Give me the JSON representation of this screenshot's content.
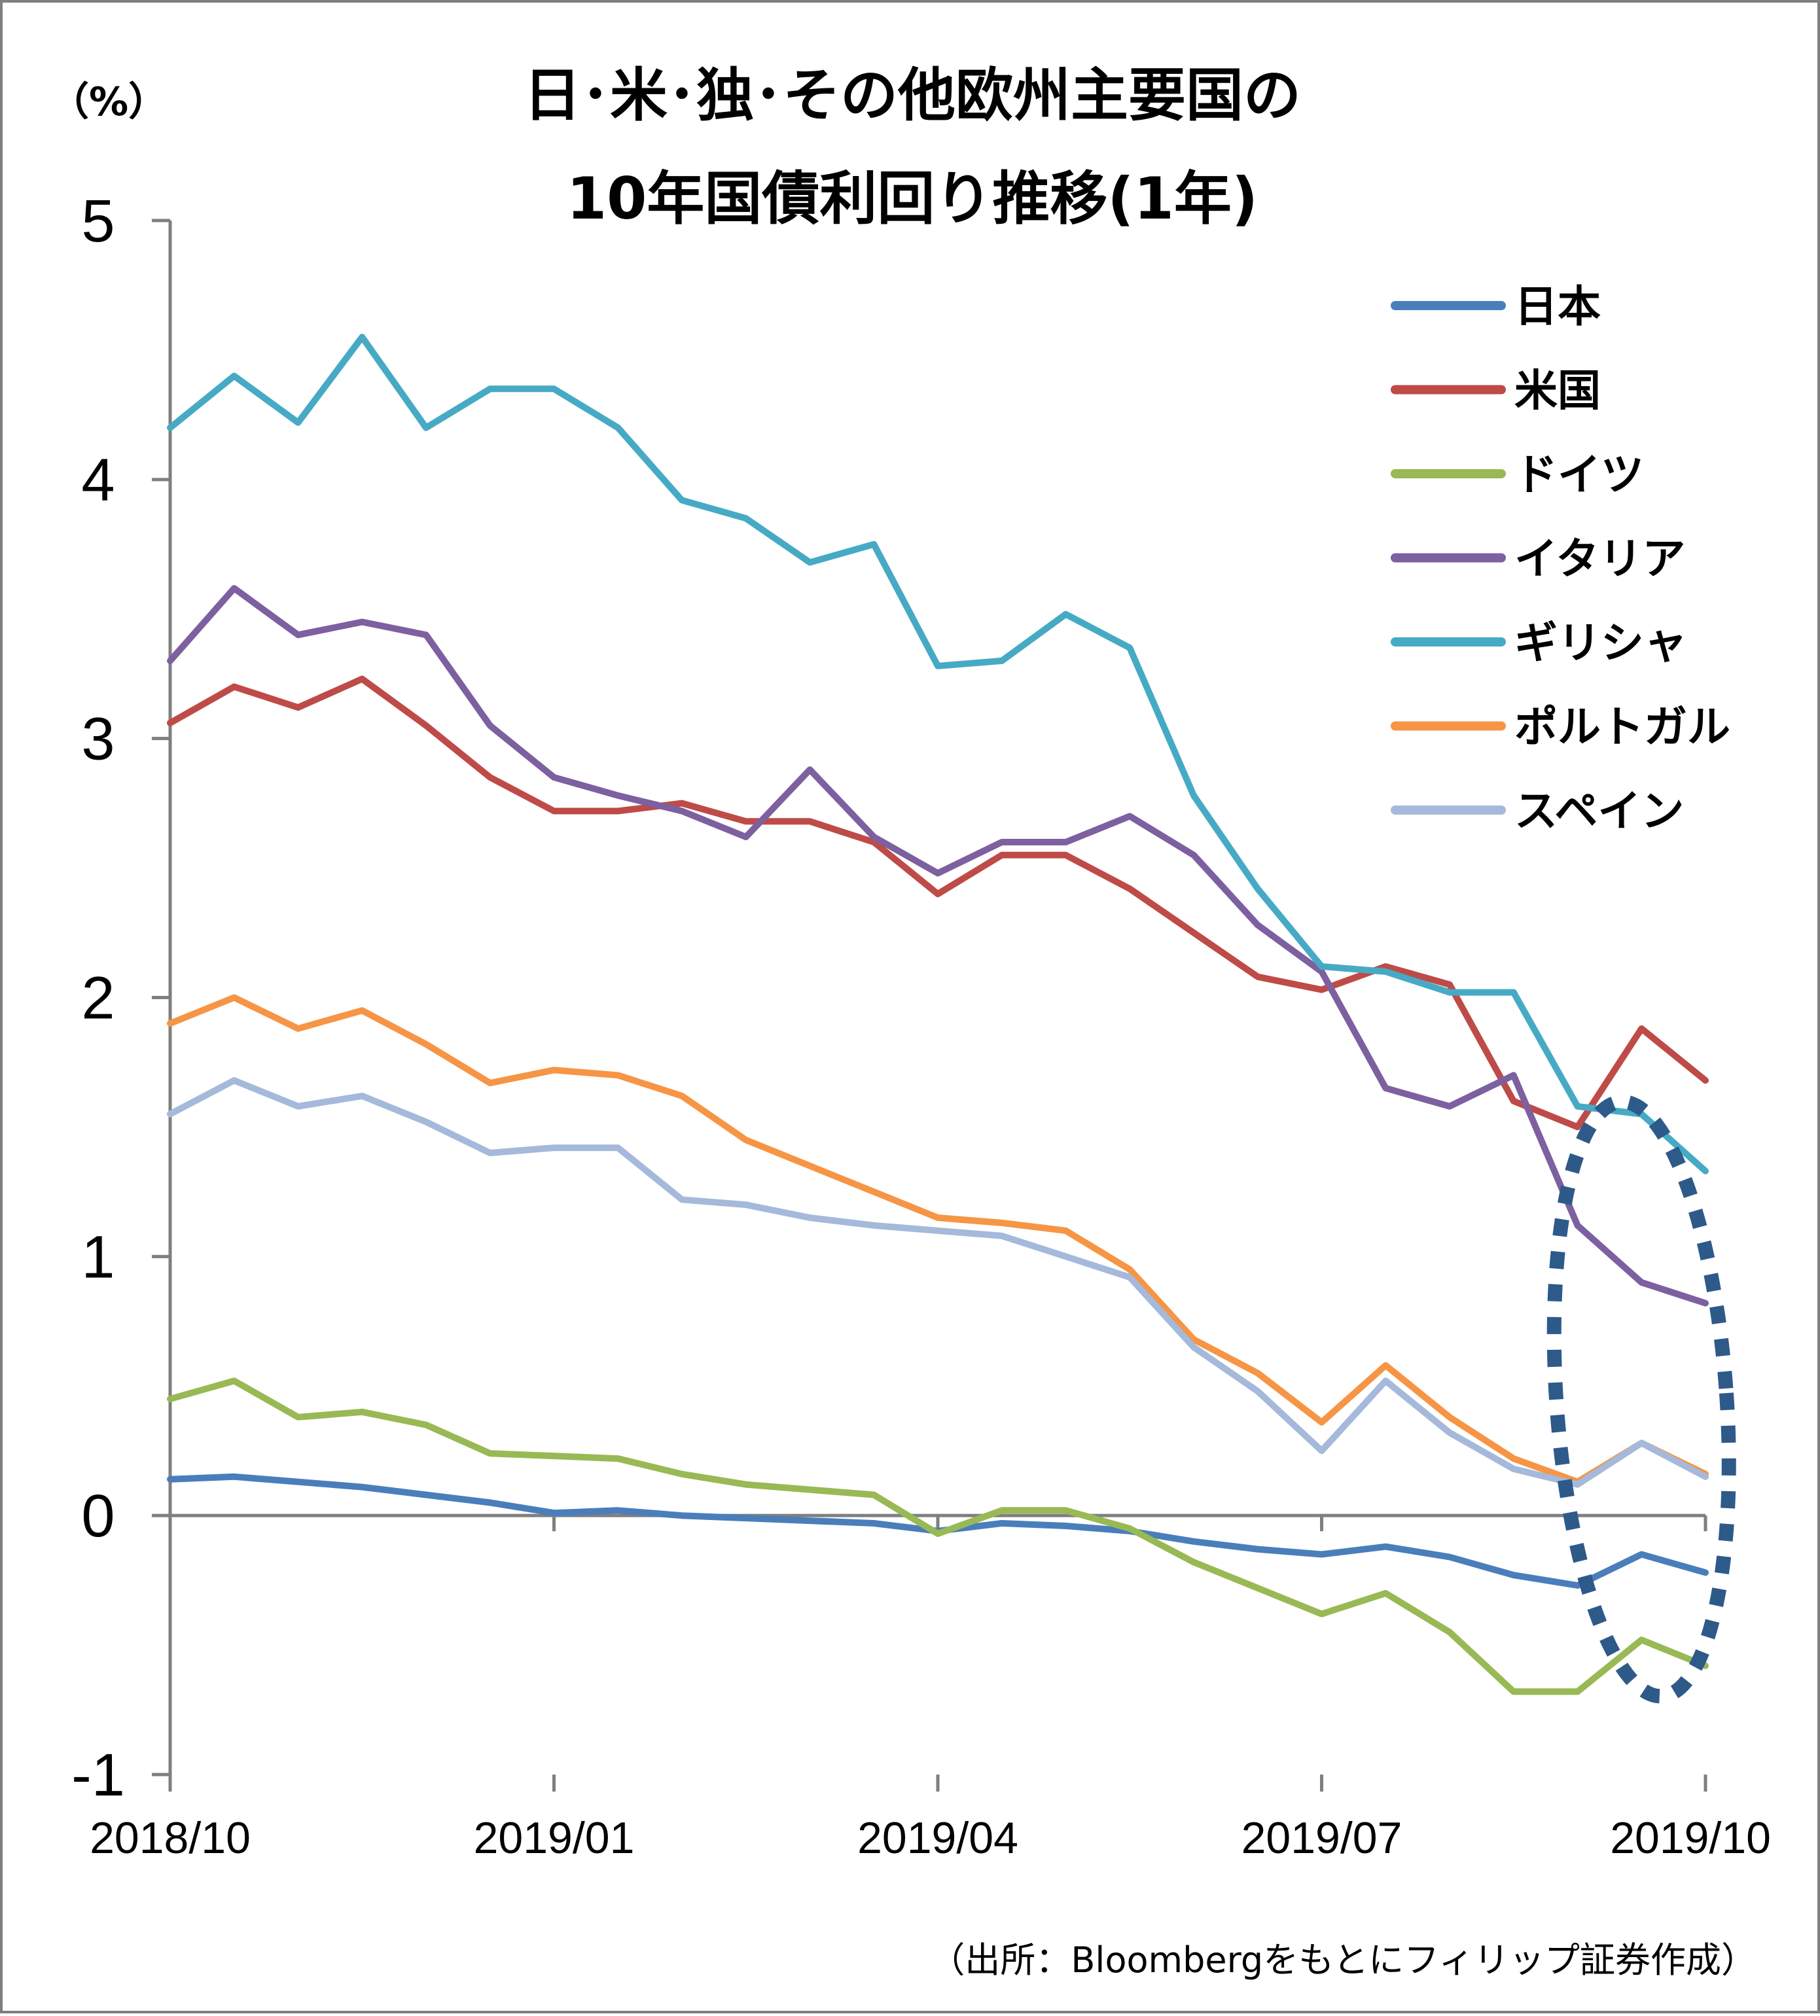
{
  "chart_data": {
    "type": "line",
    "title_line1": "日･米･独･その他欧州主要国の",
    "title_line2": "10年国債利回り推移(1年)",
    "ylabel": "（%）",
    "ylim": [
      -1,
      5
    ],
    "y_ticks": [
      "5",
      "4",
      "3",
      "2",
      "1",
      "0",
      "-1"
    ],
    "x_ticks": [
      "2018/10",
      "2019/01",
      "2019/04",
      "2019/07",
      "2019/10"
    ],
    "x_tick_values": [
      0,
      3,
      6,
      9,
      12
    ],
    "xlim": [
      0,
      12
    ],
    "source": "（出所：Bloombergをもとにフィリップ証券作成）",
    "x": [
      0,
      0.5,
      1,
      1.5,
      2,
      2.5,
      3,
      3.5,
      4,
      4.5,
      5,
      5.5,
      6,
      6.5,
      7,
      7.5,
      8,
      8.5,
      9,
      9.5,
      10,
      10.5,
      11,
      11.5,
      12
    ],
    "series": [
      {
        "name": "日本",
        "color": "#4a7ebb",
        "values": [
          0.14,
          0.15,
          0.13,
          0.11,
          0.08,
          0.05,
          0.01,
          0.02,
          0.0,
          -0.01,
          -0.02,
          -0.03,
          -0.06,
          -0.03,
          -0.04,
          -0.06,
          -0.1,
          -0.13,
          -0.15,
          -0.12,
          -0.16,
          -0.23,
          -0.27,
          -0.15,
          -0.22
        ]
      },
      {
        "name": "米国",
        "color": "#be4b48",
        "values": [
          3.06,
          3.2,
          3.12,
          3.23,
          3.05,
          2.85,
          2.72,
          2.72,
          2.75,
          2.68,
          2.68,
          2.6,
          2.4,
          2.55,
          2.55,
          2.42,
          2.25,
          2.08,
          2.03,
          2.12,
          2.05,
          1.6,
          1.5,
          1.88,
          1.68
        ]
      },
      {
        "name": "ドイツ",
        "color": "#98b954",
        "values": [
          0.45,
          0.52,
          0.38,
          0.4,
          0.35,
          0.24,
          0.23,
          0.22,
          0.16,
          0.12,
          0.1,
          0.08,
          -0.07,
          0.02,
          0.02,
          -0.05,
          -0.18,
          -0.28,
          -0.38,
          -0.3,
          -0.45,
          -0.68,
          -0.68,
          -0.48,
          -0.58
        ]
      },
      {
        "name": "イタリア",
        "color": "#7d60a0",
        "values": [
          3.3,
          3.58,
          3.4,
          3.45,
          3.4,
          3.05,
          2.85,
          2.78,
          2.72,
          2.62,
          2.88,
          2.62,
          2.48,
          2.6,
          2.6,
          2.7,
          2.55,
          2.28,
          2.1,
          1.65,
          1.58,
          1.7,
          1.12,
          0.9,
          0.82
        ]
      },
      {
        "name": "ギリシャ",
        "color": "#46aac5",
        "values": [
          4.2,
          4.4,
          4.22,
          4.55,
          4.2,
          4.35,
          4.35,
          4.2,
          3.92,
          3.85,
          3.68,
          3.75,
          3.28,
          3.3,
          3.48,
          3.35,
          2.78,
          2.42,
          2.12,
          2.1,
          2.02,
          2.02,
          1.58,
          1.55,
          1.33
        ]
      },
      {
        "name": "ポルトガル",
        "color": "#f69545",
        "values": [
          1.9,
          2.0,
          1.88,
          1.95,
          1.82,
          1.67,
          1.72,
          1.7,
          1.62,
          1.45,
          1.35,
          1.25,
          1.15,
          1.13,
          1.1,
          0.95,
          0.68,
          0.55,
          0.36,
          0.58,
          0.38,
          0.22,
          0.13,
          0.28,
          0.16
        ]
      },
      {
        "name": "スペイン",
        "color": "#a5b9da",
        "values": [
          1.55,
          1.68,
          1.58,
          1.62,
          1.52,
          1.4,
          1.42,
          1.42,
          1.22,
          1.2,
          1.15,
          1.12,
          1.1,
          1.08,
          1.0,
          0.92,
          0.65,
          0.48,
          0.25,
          0.52,
          0.32,
          0.18,
          0.12,
          0.28,
          0.15
        ]
      }
    ],
    "annotation": {
      "shape": "dotted-ellipse",
      "color": "#2e5a8a"
    }
  }
}
